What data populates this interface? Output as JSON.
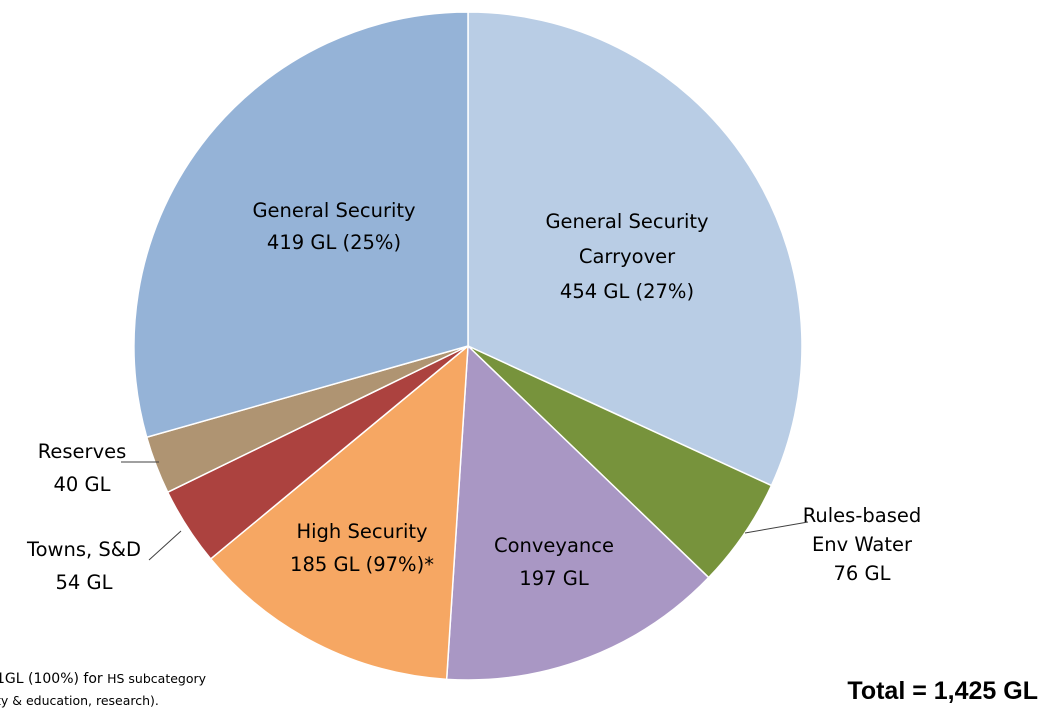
{
  "chart_data": {
    "type": "pie",
    "slices": [
      {
        "name": "General Security Carryover",
        "value": 454,
        "color": "#b9cde5",
        "label_lines": [
          "General Security",
          "Carryover",
          "454 GL (27%)"
        ]
      },
      {
        "name": "Rules-based Env Water",
        "value": 76,
        "color": "#77933c",
        "label_lines": [
          "Rules-based",
          "Env Water",
          "76 GL"
        ]
      },
      {
        "name": "Conveyance",
        "value": 197,
        "color": "#a997c4",
        "label_lines": [
          "Conveyance",
          "197 GL"
        ]
      },
      {
        "name": "High Security",
        "value": 185,
        "color": "#f6a763",
        "label_lines": [
          "High Security",
          "185 GL (97%)*"
        ]
      },
      {
        "name": "Towns, S&D",
        "value": 54,
        "color": "#ac423f",
        "label_lines": [
          "Towns, S&D",
          "54 GL"
        ]
      },
      {
        "name": "Reserves",
        "value": 40,
        "color": "#af9472",
        "label_lines": [
          "Reserves",
          "40 GL"
        ]
      },
      {
        "name": "General Security",
        "value": 419,
        "color": "#95b3d7",
        "label_lines": [
          "General Security",
          "419 GL (25%)"
        ]
      }
    ]
  },
  "footnote": {
    "part1": "1GL (100%) for ",
    "part2": "HS subcategory",
    "line2": "ty & education, research)."
  },
  "total": "Total = 1,425 GL"
}
